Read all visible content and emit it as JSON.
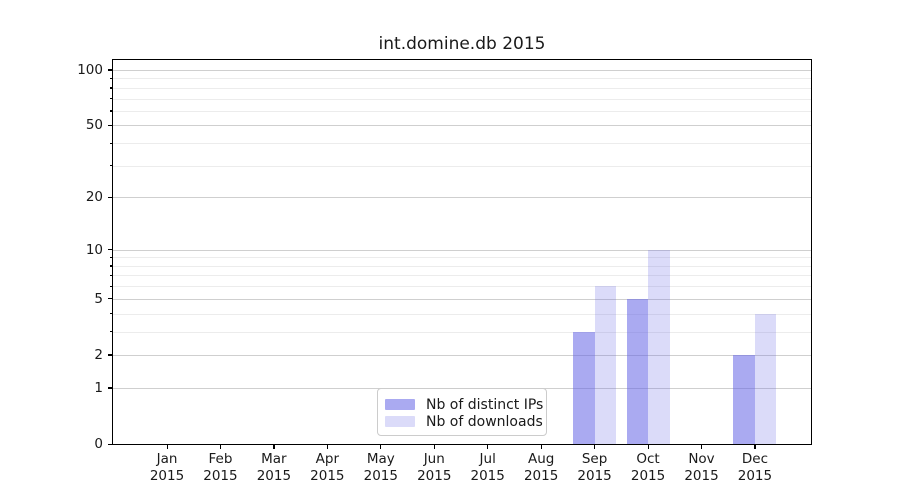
{
  "title": "int.domine.db 2015",
  "colors": {
    "bar_distinct_ips": "rgba(100,100,230,0.55)",
    "bar_downloads": "rgba(100,100,230,0.23)",
    "major_gridline": "#cfcfcf",
    "minor_gridline": "#ececec",
    "spine": "#000000",
    "text": "#1a1a1a",
    "legend_border": "#cccccc"
  },
  "x_axis": {
    "months": [
      "Jan",
      "Feb",
      "Mar",
      "Apr",
      "May",
      "Jun",
      "Jul",
      "Aug",
      "Sep",
      "Oct",
      "Nov",
      "Dec"
    ],
    "year": "2015"
  },
  "y_axis": {
    "ticks": [
      0,
      1,
      2,
      5,
      10,
      20,
      50,
      100
    ],
    "minor_ticks": [
      3,
      4,
      6,
      7,
      8,
      9,
      30,
      40,
      60,
      70,
      80,
      90
    ],
    "scale": "log1p"
  },
  "legend": {
    "items": [
      {
        "label": "Nb of distinct IPs",
        "color_key": "bar_distinct_ips"
      },
      {
        "label": "Nb of downloads",
        "color_key": "bar_downloads"
      }
    ]
  },
  "chart_data": {
    "type": "bar",
    "title": "int.domine.db 2015",
    "categories": [
      "Jan 2015",
      "Feb 2015",
      "Mar 2015",
      "Apr 2015",
      "May 2015",
      "Jun 2015",
      "Jul 2015",
      "Aug 2015",
      "Sep 2015",
      "Oct 2015",
      "Nov 2015",
      "Dec 2015"
    ],
    "series": [
      {
        "name": "Nb of distinct IPs",
        "color_key": "bar_distinct_ips",
        "values": [
          0,
          0,
          0,
          0,
          0,
          0,
          0,
          0,
          3,
          5,
          0,
          2
        ]
      },
      {
        "name": "Nb of downloads",
        "color_key": "bar_downloads",
        "values": [
          0,
          0,
          0,
          0,
          0,
          0,
          0,
          0,
          6,
          10,
          0,
          4
        ]
      }
    ],
    "xlabel": "",
    "ylabel": "",
    "yscale": "log1p",
    "yticks": [
      0,
      1,
      2,
      5,
      10,
      20,
      50,
      100
    ],
    "ylim": [
      0,
      113
    ],
    "grid": "horizontal",
    "legend_position": "lower center"
  }
}
